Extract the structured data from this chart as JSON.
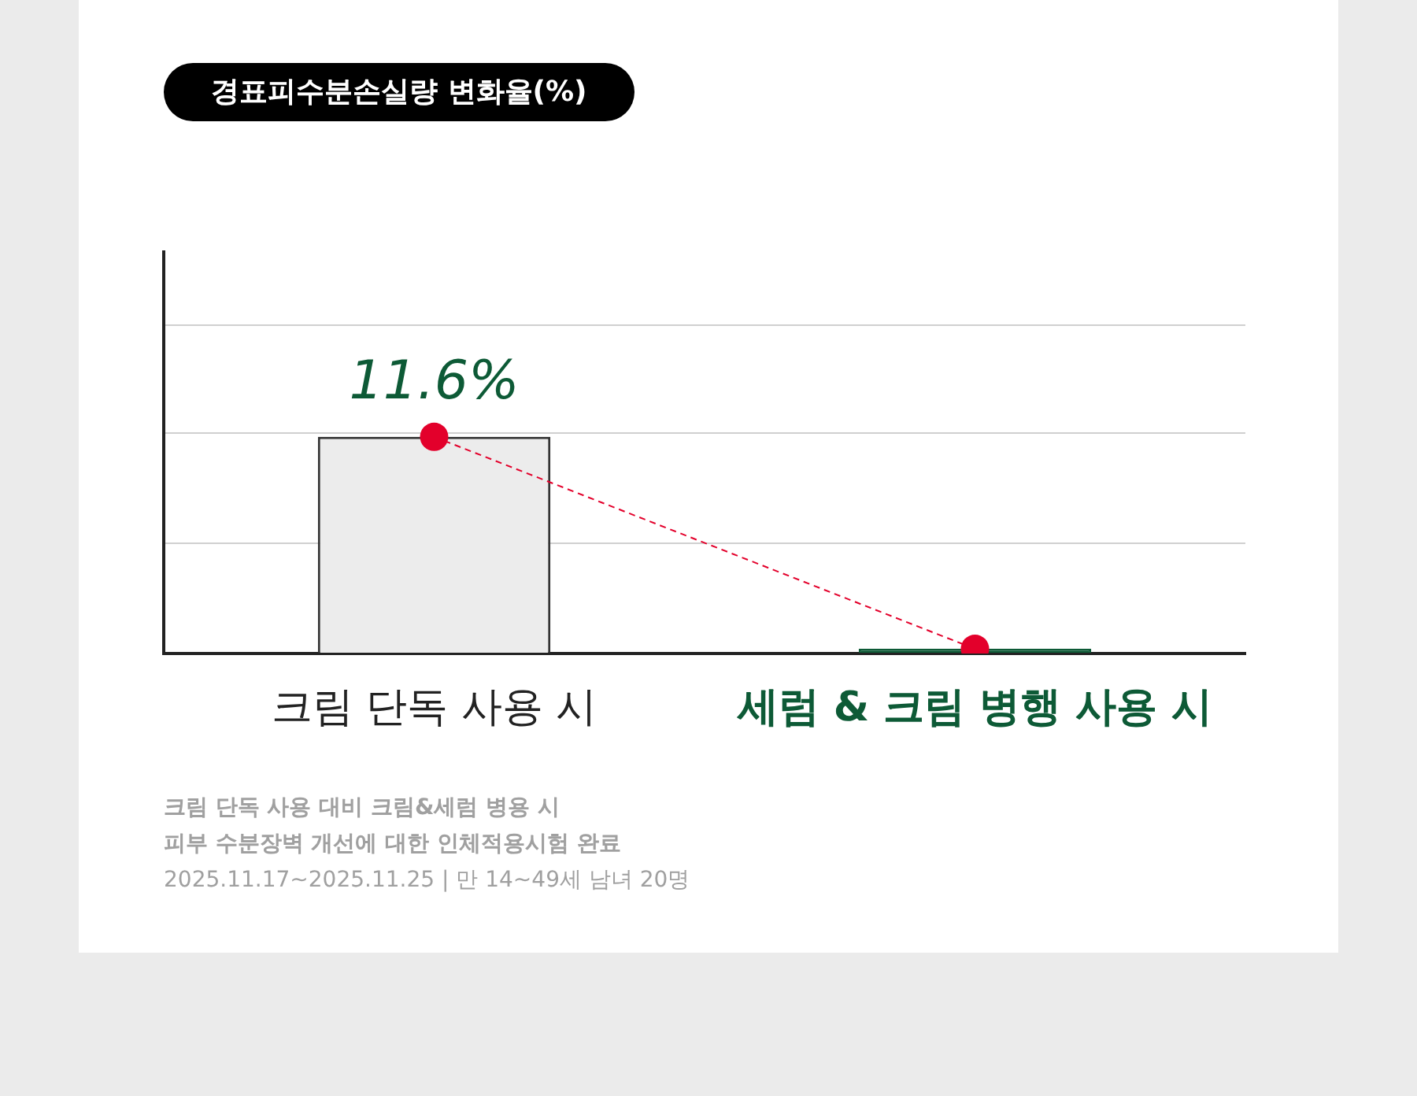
{
  "chart_data": {
    "type": "bar",
    "title": "경표피수분손실량 변화율(%)",
    "categories": [
      "크림 단독 사용 시",
      "세럼 & 크림 병행 사용 시"
    ],
    "series": [
      {
        "colors": [
          "#ececec",
          "#0d5a36"
        ],
        "values": [
          11.6,
          0.25
        ],
        "value_labels": [
          "11.6%",
          null
        ]
      },
      {
        "type": "line",
        "color": "#e3002b",
        "values": [
          11.6,
          0.25
        ],
        "marker": "circle",
        "line_style": "dashed"
      }
    ],
    "ylim": [
      0,
      21.5
    ],
    "yticks": [
      {
        "value": 0,
        "label": null
      },
      {
        "value": 5.9,
        "label": null
      },
      {
        "value": 11.8,
        "label": null
      },
      {
        "value": 17.6,
        "label": null
      }
    ],
    "grid": "y",
    "tick_labels": "x",
    "legend": false,
    "annotations": [
      "크림 단독 사용 대비 크림&세럼 병용 시",
      "피부 수분장벽 개선에 대한 인체적용시험 완료",
      "2025.11.17~2025.11.25 | 만 14~49세 남녀 20명"
    ]
  }
}
